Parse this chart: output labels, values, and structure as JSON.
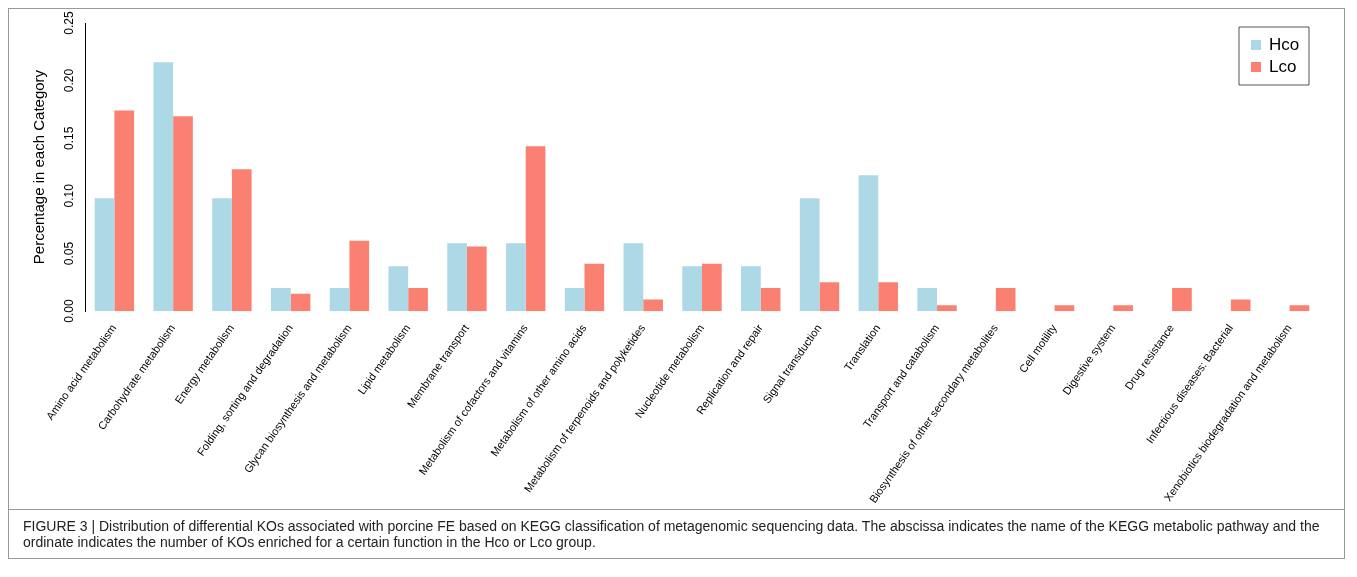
{
  "chart_data": {
    "type": "bar",
    "ylabel": "Percentage in each Category",
    "categories": [
      "Amino acid metabolism",
      "Carbohydrate metabolism",
      "Energy metabolism",
      "Folding, sorting and degradation",
      "Glycan biosynthesis and metabolism",
      "Lipid metabolism",
      "Membrane transport",
      "Metabolism of cofactors and vitamins",
      "Metabolism of other amino acids",
      "Metabolism of terpenoids and polyketides",
      "Nucleotide metabolism",
      "Replication and repair",
      "Signal transduction",
      "Translation",
      "Transport and catabolism",
      "Biosynthesis of other secondary metabolites",
      "Cell motility",
      "Digestive system",
      "Drug resistance",
      "Infectious diseases: Bacterial",
      "Xenobiotics biodegradation and metabolism"
    ],
    "series": [
      {
        "name": "Hco",
        "color": "#add8e6",
        "values": [
          0.098,
          0.216,
          0.098,
          0.02,
          0.02,
          0.039,
          0.059,
          0.059,
          0.02,
          0.059,
          0.039,
          0.039,
          0.098,
          0.118,
          0.02,
          0,
          0,
          0,
          0,
          0,
          0
        ]
      },
      {
        "name": "Lco",
        "color": "#fa8072",
        "values": [
          0.174,
          0.169,
          0.123,
          0.015,
          0.061,
          0.02,
          0.056,
          0.143,
          0.041,
          0.01,
          0.041,
          0.02,
          0.025,
          0.025,
          0.005,
          0.02,
          0.005,
          0.005,
          0.02,
          0.01,
          0.005
        ]
      }
    ],
    "ylim": [
      0,
      0.25
    ],
    "yticks": [
      {
        "value": 0,
        "label": "0.00"
      },
      {
        "value": 0.05,
        "label": "0.05"
      },
      {
        "value": 0.1,
        "label": "0.10"
      },
      {
        "value": 0.15,
        "label": "0.15"
      },
      {
        "value": 0.2,
        "label": "0.20"
      },
      {
        "value": 0.25,
        "label": "0.25"
      }
    ],
    "legend": "top right",
    "grid": false,
    "annotations": [
      "FIGURE 3 | Distribution of differential KOs associated with porcine FE based on KEGG classification of metagenomic sequencing data. The abscissa indicates the name of the KEGG metabolic pathway and the ordinate indicates the number of KOs enriched for a certain function in the Hco or Lco group."
    ]
  }
}
